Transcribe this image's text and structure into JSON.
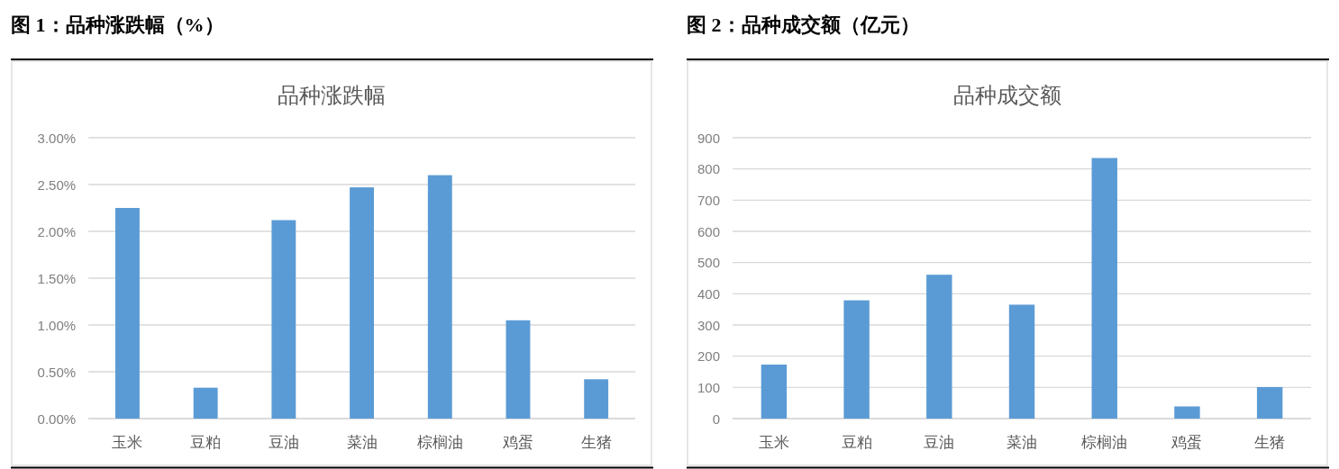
{
  "chart_data": [
    {
      "type": "bar",
      "title": "品种涨跌幅",
      "annotations": [
        "图 1：品种涨跌幅（%）"
      ],
      "categories": [
        "玉米",
        "豆粕",
        "豆油",
        "菜油",
        "棕榈油",
        "鸡蛋",
        "生猪"
      ],
      "values": [
        2.25,
        0.33,
        2.12,
        2.47,
        2.6,
        1.05,
        0.42
      ],
      "color": "#5b9bd5",
      "ylim": [
        0,
        3
      ],
      "yticks": [
        {
          "value": 0,
          "label": "0.00%"
        },
        {
          "value": 0.5,
          "label": "0.50%"
        },
        {
          "value": 1,
          "label": "1.00%"
        },
        {
          "value": 1.5,
          "label": "1.50%"
        },
        {
          "value": 2,
          "label": "2.00%"
        },
        {
          "value": 2.5,
          "label": "2.50%"
        },
        {
          "value": 3,
          "label": "3.00%"
        }
      ],
      "grid": "y"
    },
    {
      "type": "bar",
      "title": "品种成交额",
      "annotations": [
        "图 2：品种成交额（亿元）"
      ],
      "categories": [
        "玉米",
        "豆粕",
        "豆油",
        "菜油",
        "棕榈油",
        "鸡蛋",
        "生猪"
      ],
      "values": [
        173,
        379,
        461,
        365,
        835,
        39,
        101
      ],
      "color": "#5b9bd5",
      "ylim": [
        0,
        900
      ],
      "yticks": [
        0,
        100,
        200,
        300,
        400,
        500,
        600,
        700,
        800,
        900
      ],
      "grid": "y"
    }
  ]
}
